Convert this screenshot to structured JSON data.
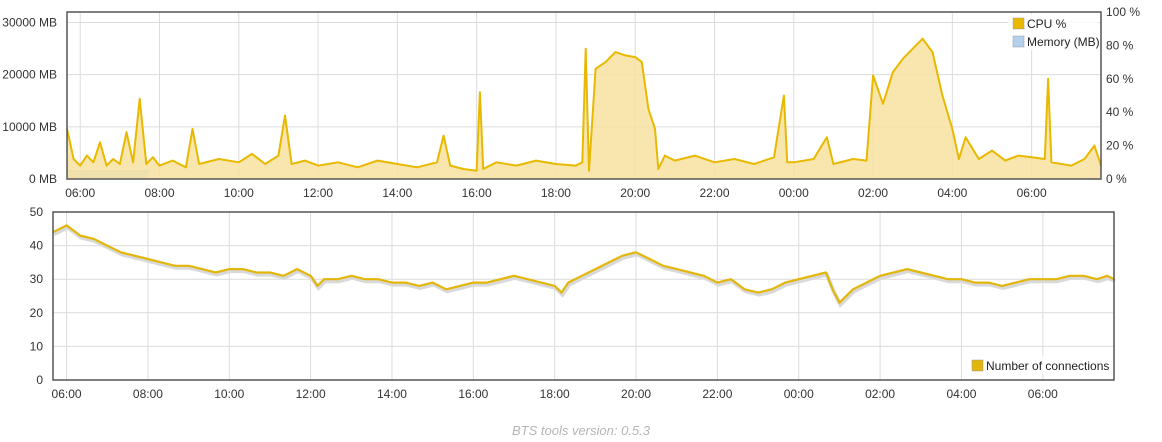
{
  "footer": {
    "text": "BTS tools version: 0.5.3"
  },
  "colors": {
    "cpu": "#e8b900",
    "cpu_fill": "#f7e2a0",
    "memory": "#b3d1ec",
    "connections": "#e2b60a",
    "connections_shadow": "#d9d9d9",
    "grid": "#dcdcdc",
    "frame": "#555555"
  },
  "chart_data": [
    {
      "type": "line",
      "x_tick_labels": [
        "06:00",
        "08:00",
        "10:00",
        "12:00",
        "14:00",
        "16:00",
        "18:00",
        "20:00",
        "22:00",
        "00:00",
        "02:00",
        "04:00",
        "06:00"
      ],
      "y_left_ticks": [
        "0 MB",
        "10000 MB",
        "20000 MB",
        "30000 MB"
      ],
      "y_left_lim": [
        0,
        32000
      ],
      "y_right_ticks": [
        "0 %",
        "20 %",
        "40 %",
        "60 %",
        "80 %",
        "100 %"
      ],
      "y_right_lim": [
        0,
        100
      ],
      "grid": true,
      "legend_position": "top-right",
      "series": [
        {
          "name": "CPU %",
          "axis": "right",
          "color": "#e8b900",
          "fill": true,
          "points": [
            [
              "05:40",
              30
            ],
            [
              "05:50",
              12
            ],
            [
              "06:00",
              8
            ],
            [
              "06:10",
              14
            ],
            [
              "06:20",
              10
            ],
            [
              "06:30",
              22
            ],
            [
              "06:40",
              8
            ],
            [
              "06:50",
              12
            ],
            [
              "07:00",
              9
            ],
            [
              "07:10",
              28
            ],
            [
              "07:20",
              10
            ],
            [
              "07:30",
              48
            ],
            [
              "07:40",
              9
            ],
            [
              "07:50",
              13
            ],
            [
              "08:00",
              8
            ],
            [
              "08:20",
              11
            ],
            [
              "08:40",
              7
            ],
            [
              "08:50",
              30
            ],
            [
              "09:00",
              9
            ],
            [
              "09:30",
              12
            ],
            [
              "10:00",
              10
            ],
            [
              "10:20",
              15
            ],
            [
              "10:40",
              9
            ],
            [
              "11:00",
              14
            ],
            [
              "11:10",
              38
            ],
            [
              "11:20",
              9
            ],
            [
              "11:40",
              11
            ],
            [
              "12:00",
              8
            ],
            [
              "12:30",
              10
            ],
            [
              "13:00",
              7
            ],
            [
              "13:30",
              11
            ],
            [
              "14:00",
              9
            ],
            [
              "14:30",
              7
            ],
            [
              "15:00",
              10
            ],
            [
              "15:10",
              26
            ],
            [
              "15:20",
              8
            ],
            [
              "15:40",
              6
            ],
            [
              "16:00",
              5
            ],
            [
              "16:05",
              52
            ],
            [
              "16:10",
              6
            ],
            [
              "16:30",
              10
            ],
            [
              "17:00",
              8
            ],
            [
              "17:30",
              11
            ],
            [
              "18:00",
              9
            ],
            [
              "18:30",
              8
            ],
            [
              "18:40",
              10
            ],
            [
              "18:45",
              78
            ],
            [
              "18:50",
              5
            ],
            [
              "19:00",
              66
            ],
            [
              "19:15",
              70
            ],
            [
              "19:30",
              76
            ],
            [
              "19:45",
              74
            ],
            [
              "20:00",
              73
            ],
            [
              "20:10",
              70
            ],
            [
              "20:20",
              42
            ],
            [
              "20:30",
              30
            ],
            [
              "20:35",
              6
            ],
            [
              "20:45",
              14
            ],
            [
              "21:00",
              11
            ],
            [
              "21:30",
              14
            ],
            [
              "22:00",
              10
            ],
            [
              "22:30",
              12
            ],
            [
              "23:00",
              9
            ],
            [
              "23:30",
              13
            ],
            [
              "23:45",
              50
            ],
            [
              "23:50",
              10
            ],
            [
              "00:00",
              10
            ],
            [
              "00:30",
              12
            ],
            [
              "00:50",
              25
            ],
            [
              "01:00",
              9
            ],
            [
              "01:30",
              12
            ],
            [
              "01:50",
              11
            ],
            [
              "02:00",
              62
            ],
            [
              "02:15",
              45
            ],
            [
              "02:30",
              64
            ],
            [
              "02:45",
              72
            ],
            [
              "03:00",
              78
            ],
            [
              "03:15",
              84
            ],
            [
              "03:30",
              76
            ],
            [
              "03:45",
              50
            ],
            [
              "04:00",
              30
            ],
            [
              "04:10",
              12
            ],
            [
              "04:20",
              25
            ],
            [
              "04:40",
              12
            ],
            [
              "05:00",
              17
            ],
            [
              "05:20",
              11
            ],
            [
              "05:40",
              14
            ],
            [
              "06:00",
              13
            ],
            [
              "06:20",
              12
            ],
            [
              "06:25",
              60
            ],
            [
              "06:30",
              10
            ],
            [
              "07:00",
              8
            ],
            [
              "07:20",
              12
            ],
            [
              "07:35",
              20
            ],
            [
              "07:45",
              8
            ]
          ]
        },
        {
          "name": "Memory (MB)",
          "axis": "left",
          "color": "#b3d1ec",
          "fill": true,
          "points": [
            [
              "05:40",
              1500
            ],
            [
              "07:45",
              1500
            ]
          ]
        }
      ]
    },
    {
      "type": "line",
      "x_tick_labels": [
        "06:00",
        "08:00",
        "10:00",
        "12:00",
        "14:00",
        "16:00",
        "18:00",
        "20:00",
        "22:00",
        "00:00",
        "02:00",
        "04:00",
        "06:00"
      ],
      "y_ticks": [
        "0",
        "10",
        "20",
        "30",
        "40",
        "50"
      ],
      "ylim": [
        0,
        50
      ],
      "grid": true,
      "legend_position": "bottom-right",
      "series": [
        {
          "name": "Number of connections",
          "color": "#e2b60a",
          "points": [
            [
              "05:40",
              44
            ],
            [
              "05:50",
              45
            ],
            [
              "06:00",
              46
            ],
            [
              "06:20",
              43
            ],
            [
              "06:40",
              42
            ],
            [
              "07:00",
              40
            ],
            [
              "07:20",
              38
            ],
            [
              "07:40",
              37
            ],
            [
              "08:00",
              36
            ],
            [
              "08:20",
              35
            ],
            [
              "08:40",
              34
            ],
            [
              "09:00",
              34
            ],
            [
              "09:20",
              33
            ],
            [
              "09:40",
              32
            ],
            [
              "10:00",
              33
            ],
            [
              "10:20",
              33
            ],
            [
              "10:40",
              32
            ],
            [
              "11:00",
              32
            ],
            [
              "11:20",
              31
            ],
            [
              "11:40",
              33
            ],
            [
              "12:00",
              31
            ],
            [
              "12:10",
              28
            ],
            [
              "12:20",
              30
            ],
            [
              "12:40",
              30
            ],
            [
              "13:00",
              31
            ],
            [
              "13:20",
              30
            ],
            [
              "13:40",
              30
            ],
            [
              "14:00",
              29
            ],
            [
              "14:20",
              29
            ],
            [
              "14:40",
              28
            ],
            [
              "15:00",
              29
            ],
            [
              "15:20",
              27
            ],
            [
              "15:40",
              28
            ],
            [
              "16:00",
              29
            ],
            [
              "16:20",
              29
            ],
            [
              "16:40",
              30
            ],
            [
              "17:00",
              31
            ],
            [
              "17:20",
              30
            ],
            [
              "17:40",
              29
            ],
            [
              "18:00",
              28
            ],
            [
              "18:10",
              26
            ],
            [
              "18:20",
              29
            ],
            [
              "18:40",
              31
            ],
            [
              "19:00",
              33
            ],
            [
              "19:20",
              35
            ],
            [
              "19:40",
              37
            ],
            [
              "20:00",
              38
            ],
            [
              "20:20",
              36
            ],
            [
              "20:40",
              34
            ],
            [
              "21:00",
              33
            ],
            [
              "21:20",
              32
            ],
            [
              "21:40",
              31
            ],
            [
              "22:00",
              29
            ],
            [
              "22:20",
              30
            ],
            [
              "22:40",
              27
            ],
            [
              "23:00",
              26
            ],
            [
              "23:20",
              27
            ],
            [
              "23:40",
              29
            ],
            [
              "00:00",
              30
            ],
            [
              "00:20",
              31
            ],
            [
              "00:40",
              32
            ],
            [
              "00:50",
              27
            ],
            [
              "01:00",
              23
            ],
            [
              "01:20",
              27
            ],
            [
              "01:40",
              29
            ],
            [
              "02:00",
              31
            ],
            [
              "02:20",
              32
            ],
            [
              "02:40",
              33
            ],
            [
              "03:00",
              32
            ],
            [
              "03:20",
              31
            ],
            [
              "03:40",
              30
            ],
            [
              "04:00",
              30
            ],
            [
              "04:20",
              29
            ],
            [
              "04:40",
              29
            ],
            [
              "05:00",
              28
            ],
            [
              "05:20",
              29
            ],
            [
              "05:40",
              30
            ],
            [
              "06:00",
              30
            ],
            [
              "06:20",
              30
            ],
            [
              "06:40",
              31
            ],
            [
              "07:00",
              31
            ],
            [
              "07:20",
              30
            ],
            [
              "07:35",
              31
            ],
            [
              "07:45",
              30
            ]
          ]
        }
      ]
    }
  ]
}
